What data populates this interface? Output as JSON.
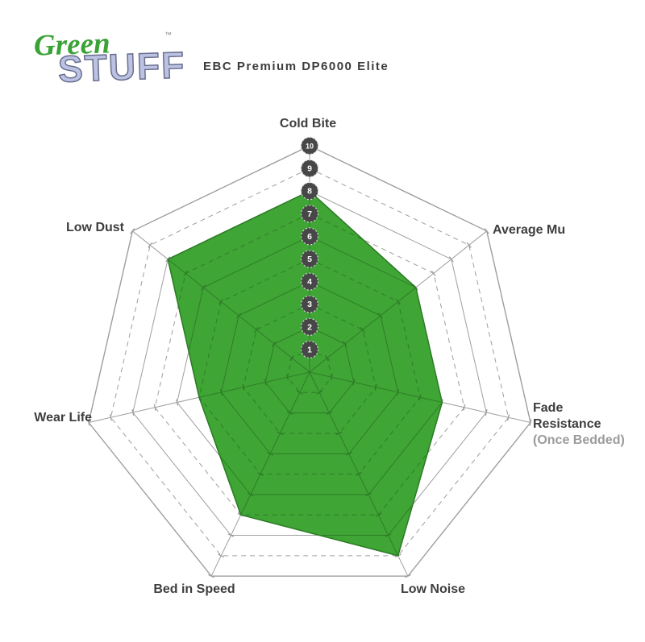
{
  "logo": {
    "word1": "Green",
    "word2": "STUFF",
    "trademark": "™"
  },
  "header": {
    "title": "EBC Premium DP6000 Elite"
  },
  "labels": {
    "cold_bite": "Cold Bite",
    "average_mu": "Average Mu",
    "fade_line1": "Fade",
    "fade_line2": "Resistance",
    "fade_line3": "(Once Bedded)",
    "low_noise": "Low Noise",
    "bed_in_speed": "Bed in Speed",
    "wear_life": "Wear Life",
    "low_dust": "Low Dust"
  },
  "chart_data": {
    "type": "radar",
    "title": "EBC Premium DP6000 Elite",
    "axes": [
      "Cold Bite",
      "Average Mu",
      "Fade Resistance (Once Bedded)",
      "Low Noise",
      "Bed in Speed",
      "Wear Life",
      "Low Dust"
    ],
    "series": [
      {
        "name": "EBC Premium DP6000 Elite",
        "values": [
          8,
          6,
          6,
          9,
          7,
          5,
          8
        ]
      }
    ],
    "scale": {
      "min": 0,
      "max": 10,
      "ticks": [
        1,
        2,
        3,
        4,
        5,
        6,
        7,
        8,
        9,
        10
      ]
    },
    "axis_range": [
      0,
      10
    ],
    "grid": {
      "rings": 10,
      "style": "concentric heptagons, even rings solid, odd rings dashed",
      "on": true
    },
    "legend_position": "none",
    "colors": {
      "fill": "#3fa535",
      "fill_stroke": "#2b7a24",
      "grid_gray": "#9e9e9e",
      "grid_green": "#2f7d28",
      "badge": "#474747",
      "badge_ring": "#d8d8d8",
      "badge_text": "#ffffff",
      "label": "#3e3e3e",
      "sublabel": "#9b9b9b"
    }
  }
}
